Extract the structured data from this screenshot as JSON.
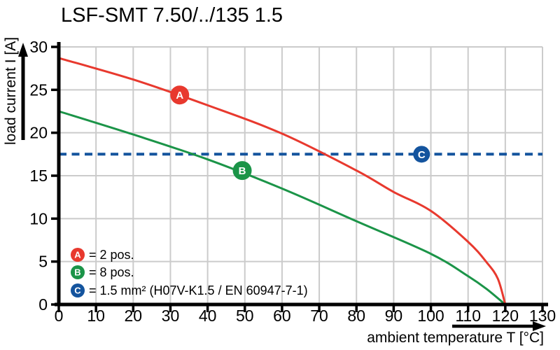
{
  "window": {
    "title": "LSF-SMT 7.50/../135 1.5"
  },
  "colors": {
    "series_a_red": "#e8392e",
    "series_b_green": "#1b9448",
    "series_c_blue": "#14549e",
    "grid": "#cbcbcb",
    "axis": "#000000",
    "background": "#ffffff",
    "marker_letter": "#ffffff"
  },
  "chart_data": {
    "type": "line",
    "title": "LSF-SMT 7.50/../135 1.5",
    "xlabel": "ambient temperature T [°C]",
    "ylabel": "load current I [A]",
    "xlim": [
      0,
      130
    ],
    "ylim": [
      0,
      30
    ],
    "xticks": [
      0,
      10,
      20,
      30,
      40,
      50,
      60,
      70,
      80,
      90,
      100,
      110,
      120,
      130
    ],
    "yticks": [
      0,
      5,
      10,
      15,
      20,
      25,
      30
    ],
    "grid": true,
    "legend_position": "bottom-left",
    "series": [
      {
        "name": "A",
        "legend_label": "= 2 pos.",
        "color": "#e8392e",
        "line": "solid",
        "points": [
          [
            0,
            28.7
          ],
          [
            20,
            26.2
          ],
          [
            40,
            23.2
          ],
          [
            60,
            19.9
          ],
          [
            80,
            15.6
          ],
          [
            90,
            13.1
          ],
          [
            100,
            10.9
          ],
          [
            110,
            7.3
          ],
          [
            115,
            4.9
          ],
          [
            118,
            3.0
          ],
          [
            120,
            0
          ]
        ],
        "marker": {
          "T": 32.5,
          "I": 24.4,
          "letter": "A"
        }
      },
      {
        "name": "B",
        "legend_label": "= 8 pos.",
        "color": "#1b9448",
        "line": "solid",
        "points": [
          [
            0,
            22.5
          ],
          [
            20,
            19.8
          ],
          [
            40,
            16.9
          ],
          [
            60,
            13.5
          ],
          [
            80,
            9.7
          ],
          [
            100,
            5.9
          ],
          [
            110,
            3.3
          ],
          [
            115,
            1.8
          ],
          [
            120,
            0
          ]
        ],
        "marker": {
          "T": 49.3,
          "I": 15.6,
          "letter": "B"
        }
      },
      {
        "name": "C",
        "legend_label": "= 1.5 mm² (H07V-K1.5 / EN 60947-7-1)",
        "color": "#14549e",
        "line": "dashed",
        "points": [
          [
            0,
            17.5
          ],
          [
            130,
            17.5
          ]
        ],
        "marker": {
          "T": 97.5,
          "I": 17.5,
          "letter": "C"
        }
      }
    ]
  }
}
